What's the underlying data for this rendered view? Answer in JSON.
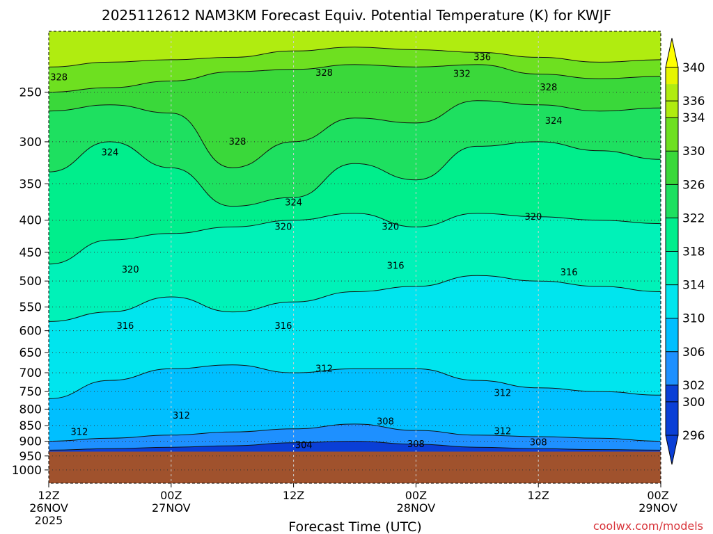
{
  "chart_data": {
    "type": "heatmap",
    "title": "2025112612 NAM3KM Forecast Equiv. Potential Temperature (K) for KWJF",
    "xlabel": "Forecast Time (UTC)",
    "ylabel": "",
    "credit": "coolwx.com/models",
    "x_ticks": [
      {
        "h": 0,
        "l1": "12Z",
        "l2": "26NOV",
        "l3": "2025"
      },
      {
        "h": 12,
        "l1": "00Z",
        "l2": "27NOV",
        "l3": ""
      },
      {
        "h": 24,
        "l1": "12Z",
        "l2": "",
        "l3": ""
      },
      {
        "h": 36,
        "l1": "00Z",
        "l2": "28NOV",
        "l3": ""
      },
      {
        "h": 48,
        "l1": "12Z",
        "l2": "",
        "l3": ""
      },
      {
        "h": 60,
        "l1": "00Z",
        "l2": "29NOV",
        "l3": ""
      }
    ],
    "xlim_hours": [
      0,
      60
    ],
    "y_levels_hpa": [
      250,
      300,
      350,
      400,
      450,
      500,
      550,
      600,
      650,
      700,
      750,
      800,
      850,
      900,
      950,
      1000
    ],
    "y_scale": "log-pressure",
    "ylim_hpa": [
      1050,
      200
    ],
    "ground_level_hpa": 935,
    "ground_color": "#a0522d",
    "grid": "dotted",
    "colorbar": {
      "ticks": [
        340,
        336,
        334,
        330,
        326,
        322,
        318,
        314,
        310,
        306,
        302,
        300,
        296
      ],
      "stops": [
        {
          "v": 296,
          "c": "#0a3fd6"
        },
        {
          "v": 302,
          "c": "#1e90ff"
        },
        {
          "v": 306,
          "c": "#00bfff"
        },
        {
          "v": 310,
          "c": "#00e5ee"
        },
        {
          "v": 314,
          "c": "#00f2b8"
        },
        {
          "v": 318,
          "c": "#00ee8c"
        },
        {
          "v": 322,
          "c": "#1ee060"
        },
        {
          "v": 326,
          "c": "#3ad83a"
        },
        {
          "v": 330,
          "c": "#6ee020"
        },
        {
          "v": 334,
          "c": "#b0ec10"
        },
        {
          "v": 338,
          "c": "#e6f500"
        },
        {
          "v": 340,
          "c": "#ffff00"
        }
      ]
    },
    "contours": [
      {
        "level": 336,
        "p": [
          228,
          224,
          222,
          220,
          215,
          212,
          214,
          216,
          220,
          224,
          222
        ]
      },
      {
        "level": 332,
        "p": [
          250,
          246,
          240,
          232,
          230,
          226,
          228,
          226,
          234,
          238,
          236
        ]
      },
      {
        "level": 328,
        "p": [
          268,
          262,
          270,
          330,
          300,
          275,
          280,
          258,
          262,
          268,
          265
        ]
      },
      {
        "level": 324,
        "p": [
          335,
          300,
          330,
          380,
          368,
          325,
          345,
          305,
          300,
          310,
          320
        ]
      },
      {
        "level": 320,
        "p": [
          470,
          430,
          420,
          410,
          400,
          390,
          410,
          390,
          395,
          400,
          405
        ]
      },
      {
        "level": 316,
        "p": [
          580,
          560,
          530,
          560,
          540,
          520,
          510,
          490,
          500,
          510,
          520
        ]
      },
      {
        "level": 312,
        "p": [
          770,
          720,
          690,
          680,
          700,
          690,
          690,
          720,
          740,
          750,
          760
        ]
      },
      {
        "level": 308,
        "p": [
          900,
          890,
          880,
          870,
          860,
          845,
          865,
          880,
          885,
          890,
          900
        ]
      },
      {
        "level": 304,
        "p": [
          930,
          925,
          920,
          915,
          905,
          900,
          910,
          920,
          925,
          928,
          930
        ]
      }
    ],
    "contour_labels": [
      {
        "text": "336",
        "h": 42.5,
        "p": 220
      },
      {
        "text": "332",
        "h": 40.5,
        "p": 234
      },
      {
        "text": "328",
        "h": 27,
        "p": 233
      },
      {
        "text": "328",
        "h": 1,
        "p": 237
      },
      {
        "text": "328",
        "h": 49,
        "p": 246
      },
      {
        "text": "328",
        "h": 18.5,
        "p": 300
      },
      {
        "text": "324",
        "h": 49.5,
        "p": 278
      },
      {
        "text": "324",
        "h": 6,
        "p": 312
      },
      {
        "text": "324",
        "h": 24,
        "p": 375
      },
      {
        "text": "320",
        "h": 47.5,
        "p": 395
      },
      {
        "text": "320",
        "h": 23,
        "p": 410
      },
      {
        "text": "320",
        "h": 33.5,
        "p": 410
      },
      {
        "text": "320",
        "h": 8,
        "p": 480
      },
      {
        "text": "316",
        "h": 34,
        "p": 473
      },
      {
        "text": "316",
        "h": 51,
        "p": 485
      },
      {
        "text": "316",
        "h": 7.5,
        "p": 590
      },
      {
        "text": "316",
        "h": 23,
        "p": 590
      },
      {
        "text": "312",
        "h": 27,
        "p": 690
      },
      {
        "text": "312",
        "h": 44.5,
        "p": 755
      },
      {
        "text": "312",
        "h": 13,
        "p": 820
      },
      {
        "text": "312",
        "h": 44.5,
        "p": 868
      },
      {
        "text": "312",
        "h": 3,
        "p": 870
      },
      {
        "text": "308",
        "h": 33,
        "p": 838
      },
      {
        "text": "308",
        "h": 36,
        "p": 910
      },
      {
        "text": "308",
        "h": 48,
        "p": 905
      },
      {
        "text": "304",
        "h": 25,
        "p": 914
      }
    ]
  }
}
